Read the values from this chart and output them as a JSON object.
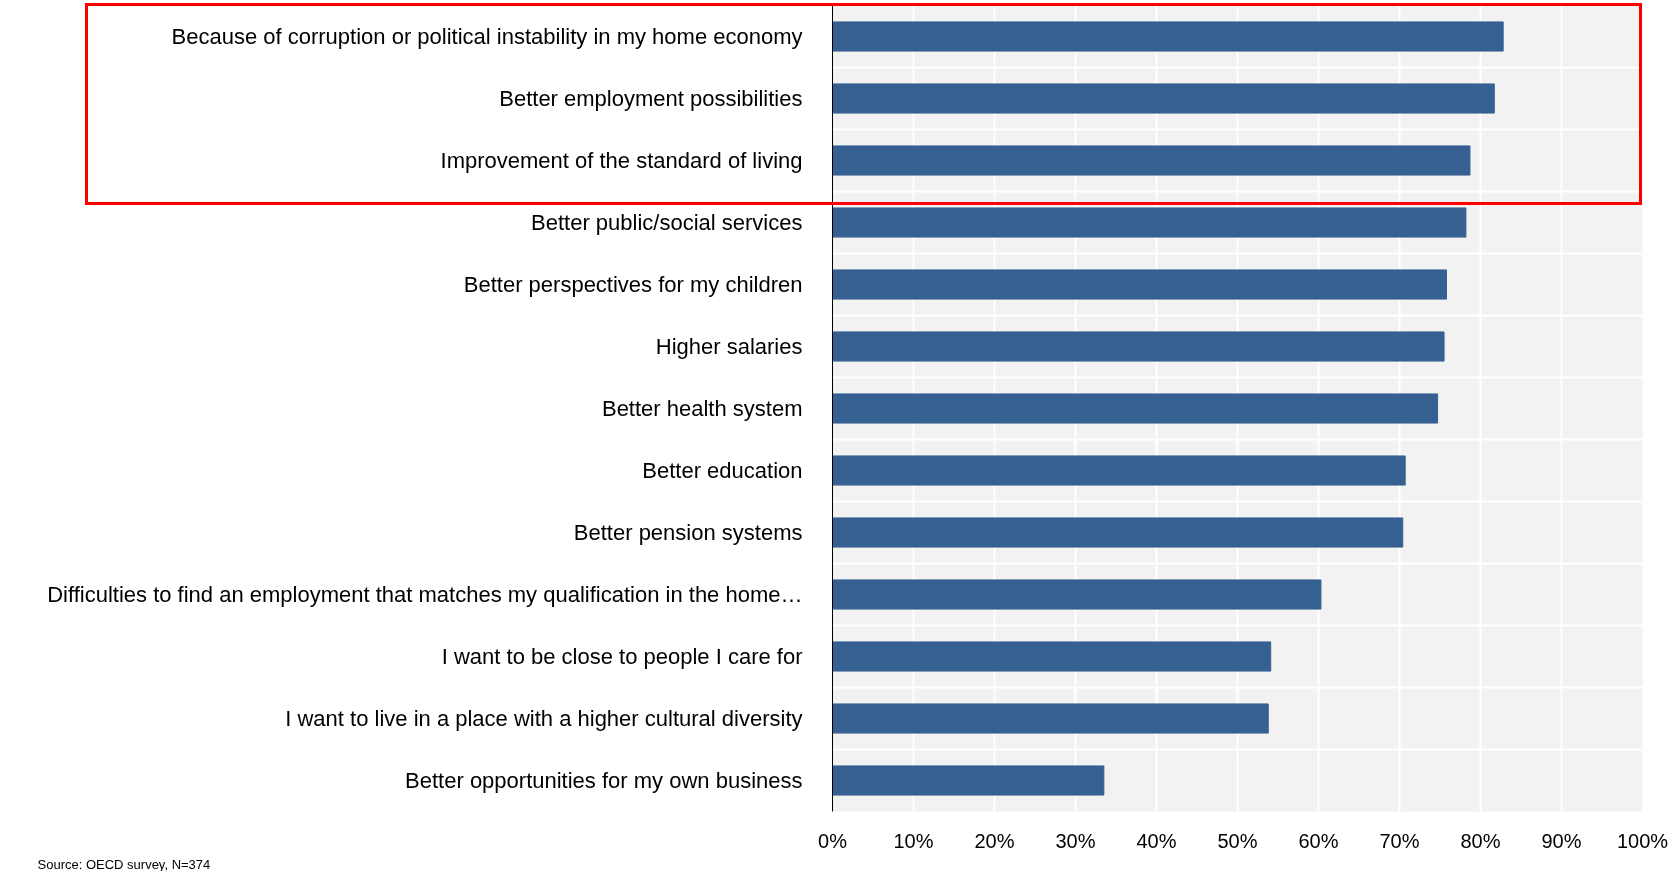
{
  "chart_data": {
    "type": "bar",
    "orientation": "horizontal",
    "categories": [
      "Because of corruption or political instability in my home economy",
      "Better employment possibilities",
      "Improvement of the standard of living",
      "Better public/social services",
      "Better perspectives for my children",
      "Higher salaries",
      "Better health system",
      "Better education",
      "Better pension systems",
      "Difficulties to find an employment that matches my qualification in the home…",
      "I want to be close to people I care for",
      "I want to live in a place with a higher cultural diversity",
      "Better opportunities for my own business"
    ],
    "values": [
      82.8,
      81.7,
      78.7,
      78.2,
      75.8,
      75.5,
      74.7,
      70.7,
      70.4,
      60.3,
      54.1,
      53.8,
      33.5
    ],
    "color": "#366092",
    "xlim": [
      0,
      100
    ],
    "xticks": [
      {
        "value": 0,
        "label": "0%"
      },
      {
        "value": 10,
        "label": "10%"
      },
      {
        "value": 20,
        "label": "20%"
      },
      {
        "value": 30,
        "label": "30%"
      },
      {
        "value": 40,
        "label": "40%"
      },
      {
        "value": 50,
        "label": "50%"
      },
      {
        "value": 60,
        "label": "60%"
      },
      {
        "value": 70,
        "label": "70%"
      },
      {
        "value": 80,
        "label": "80%"
      },
      {
        "value": 90,
        "label": "90%"
      },
      {
        "value": 100,
        "label": "100%"
      }
    ],
    "grid": true,
    "annotations": [
      "Source: OECD survey, N=374"
    ]
  }
}
